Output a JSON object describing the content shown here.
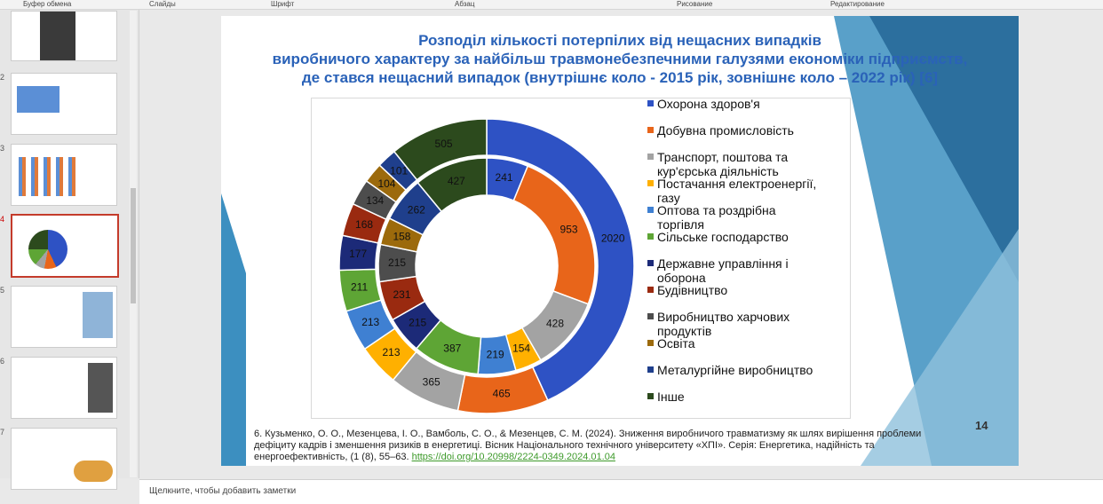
{
  "ui": {
    "ribbon_groups": [
      "Буфер обмена",
      "Слайды",
      "Шрифт",
      "Абзац",
      "Рисование",
      "Редактирование"
    ],
    "slide_numbers": [
      "2",
      "3",
      "4",
      "5",
      "6",
      "7"
    ],
    "slide_number": "14",
    "notes_placeholder": "Щелкните, чтобы добавить заметки",
    "reference": "6. Кузьменко, О. О., Мезенцева, І. О., Вамболь, С. О., & Мезенцев, С. М. (2024). Зниження виробничого травматизму як шлях вирішення проблеми дефіциту кадрів і зменшення ризиків в енергетиці. Вісник Національного технічного університету «ХПІ». Серія: Енергетика, надійність та енергоефективність, (1 (8), 55–63.",
    "reference_link": "https://doi.org/10.20998/2224-0349.2024.01.04"
  },
  "chart_data": {
    "type": "donut",
    "title": [
      "Розподіл кількості потерпілих від нещасних випадків",
      "виробничого характеру за найбільш травмонебезпечними галузями економіки підприємств,",
      "де стався нещасний випадок (внутрішнє коло - 2015 рік, зовнішнє коло – 2022 рік) [6]"
    ],
    "categories": [
      "Охорона здоров'я",
      "Добувна промисловість",
      "Транспорт, поштова та кур'єрська діяльність",
      "Постачання електроенергії, газу",
      "Оптова та роздрібна торгівля",
      "Сільське господарство",
      "Державне управління і оборона",
      "Будівництво",
      "Виробництво харчових продуктів",
      "Освіта",
      "Металургійне виробництво",
      "Інше"
    ],
    "colors": [
      "#2e52c4",
      "#e8651a",
      "#a3a3a3",
      "#ffb000",
      "#3f80d2",
      "#5ea535",
      "#1c2a78",
      "#9a2a10",
      "#4d4d4d",
      "#9c6a0c",
      "#1f3f8c",
      "#2c4a1d"
    ],
    "series": [
      {
        "values": [
          241,
          953,
          428,
          154,
          219,
          387,
          215,
          231,
          215,
          158,
          262,
          427
        ]
      },
      {
        "values": [
          2020,
          465,
          365,
          213,
          213,
          211,
          177,
          168,
          134,
          104,
          101,
          505
        ]
      }
    ]
  }
}
